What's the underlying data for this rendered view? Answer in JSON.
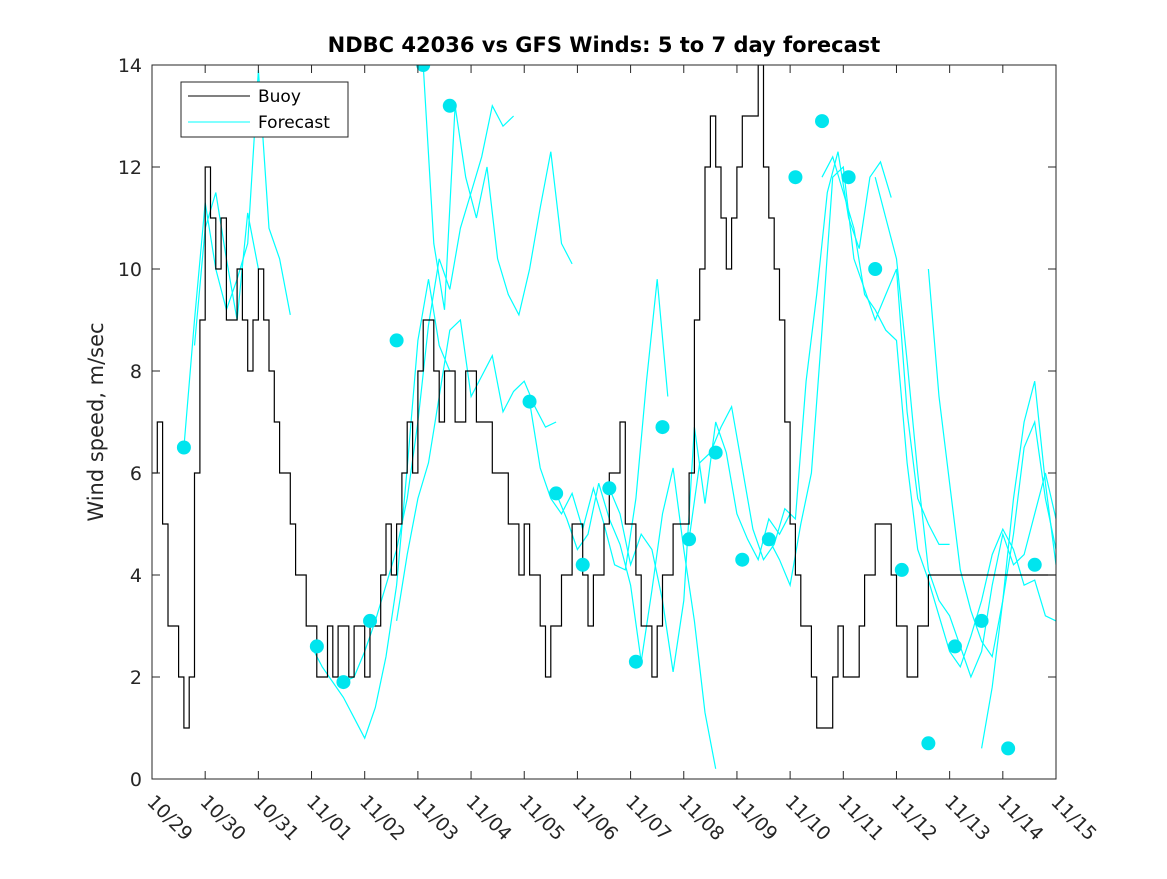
{
  "chart_data": {
    "type": "line",
    "title": "NDBC 42036 vs GFS Winds: 5 to 7 day forecast",
    "xlabel": "",
    "ylabel": "Wind speed, m/sec",
    "xlim": [
      0,
      17
    ],
    "ylim": [
      0,
      14
    ],
    "x_tick_labels": [
      "10/29",
      "10/30",
      "10/31",
      "11/01",
      "11/02",
      "11/03",
      "11/04",
      "11/05",
      "11/06",
      "11/07",
      "11/08",
      "11/09",
      "11/10",
      "11/11",
      "11/12",
      "11/13",
      "11/14",
      "11/15"
    ],
    "y_ticks": [
      0,
      2,
      4,
      6,
      8,
      10,
      12,
      14
    ],
    "legend": {
      "position": "top-left",
      "entries": [
        "Buoy",
        "Forecast"
      ]
    },
    "colors": {
      "buoy": "#000000",
      "forecast": "#00ffff",
      "marker": "#00e5ee"
    },
    "series": [
      {
        "name": "Buoy",
        "x": [
          0.0,
          0.1,
          0.2,
          0.3,
          0.4,
          0.5,
          0.6,
          0.7,
          0.8,
          0.9,
          1.0,
          1.1,
          1.2,
          1.3,
          1.4,
          1.5,
          1.6,
          1.7,
          1.8,
          1.9,
          2.0,
          2.1,
          2.2,
          2.3,
          2.4,
          2.5,
          2.6,
          2.7,
          2.8,
          2.9,
          3.0,
          3.1,
          3.2,
          3.3,
          3.4,
          3.5,
          3.6,
          3.7,
          3.8,
          3.9,
          4.0,
          4.1,
          4.2,
          4.3,
          4.4,
          4.5,
          4.6,
          4.7,
          4.8,
          4.9,
          5.0,
          5.1,
          5.2,
          5.3,
          5.4,
          5.5,
          5.6,
          5.7,
          5.8,
          5.9,
          6.0,
          6.1,
          6.2,
          6.3,
          6.4,
          6.5,
          6.6,
          6.7,
          6.8,
          6.9,
          7.0,
          7.1,
          7.2,
          7.3,
          7.4,
          7.5,
          7.6,
          7.7,
          7.8,
          7.9,
          8.0,
          8.1,
          8.2,
          8.3,
          8.4,
          8.5,
          8.6,
          8.7,
          8.8,
          8.9,
          9.0,
          9.1,
          9.2,
          9.3,
          9.4,
          9.5,
          9.6,
          9.7,
          9.8,
          9.9,
          10.0,
          10.1,
          10.2,
          10.3,
          10.4,
          10.5,
          10.6,
          10.7,
          10.8,
          10.9,
          11.0,
          11.1,
          11.2,
          11.3,
          11.4,
          11.5,
          11.6,
          11.7,
          11.8,
          11.9,
          12.0,
          12.1,
          12.2,
          12.3,
          12.4,
          12.5,
          12.6,
          12.7,
          12.8,
          12.9,
          13.0,
          13.1,
          13.2,
          13.3,
          13.4,
          13.5,
          13.6,
          13.7,
          13.8,
          13.9,
          14.0,
          14.1,
          14.2,
          14.3,
          14.4,
          14.5,
          14.6,
          14.7,
          14.8,
          14.9,
          15.0,
          15.1,
          15.2,
          15.3,
          15.4,
          15.5,
          15.6,
          15.7,
          15.8,
          15.9,
          16.0,
          16.1,
          16.2,
          16.3,
          16.4,
          16.5,
          16.6,
          16.7,
          16.8,
          16.9,
          17.0
        ],
        "y": [
          6,
          7,
          5,
          3,
          3,
          2,
          1,
          2,
          6,
          9,
          12,
          11,
          10,
          11,
          9,
          9,
          10,
          9,
          8,
          9,
          10,
          9,
          8,
          7,
          6,
          6,
          5,
          4,
          4,
          3,
          3,
          2,
          2,
          3,
          2,
          3,
          3,
          2,
          3,
          3,
          2,
          3,
          3,
          4,
          5,
          4,
          5,
          6,
          7,
          6,
          8,
          9,
          9,
          8,
          7,
          8,
          8,
          7,
          7,
          8,
          8,
          7,
          7,
          7,
          6,
          6,
          6,
          5,
          5,
          4,
          5,
          4,
          4,
          3,
          2,
          3,
          3,
          4,
          4,
          5,
          5,
          4,
          3,
          4,
          4,
          5,
          6,
          6,
          7,
          5,
          5,
          4,
          3,
          3,
          2,
          3,
          4,
          4,
          5,
          5,
          5,
          6,
          9,
          10,
          12,
          13,
          12,
          11,
          10,
          11,
          12,
          13,
          13,
          13,
          14,
          12,
          11,
          10,
          9,
          7,
          5,
          4,
          3,
          3,
          2,
          1,
          1,
          1,
          2,
          3,
          2,
          2,
          2,
          3,
          4,
          4,
          5,
          5,
          5,
          4,
          3,
          3,
          2,
          2,
          3,
          3,
          4,
          4,
          4,
          4,
          4,
          4,
          4,
          4,
          4,
          4,
          4,
          4,
          4,
          4,
          4,
          4,
          4,
          4,
          4,
          4,
          4,
          4,
          4,
          4,
          4
        ]
      },
      {
        "name": "Forecast",
        "segments": [
          {
            "x": [
              0.6,
              0.8,
              1.0,
              1.2,
              1.4,
              1.6,
              1.8,
              2.0,
              2.2,
              2.4,
              2.6
            ],
            "y": [
              6.5,
              9.0,
              11.3,
              10.0,
              9.2,
              9.8,
              10.5,
              13.9,
              10.8,
              10.2,
              9.1
            ]
          },
          {
            "x": [
              0.8,
              1.0,
              1.2,
              1.4,
              1.6,
              1.8,
              2.0
            ],
            "y": [
              8.5,
              10.8,
              11.5,
              10.2,
              9.0,
              11.1,
              10.0
            ]
          },
          {
            "x": [
              3.0,
              3.2,
              3.4,
              3.6,
              3.8,
              4.0,
              4.2,
              4.4,
              4.6,
              4.8,
              5.0,
              5.2,
              5.4,
              5.6
            ],
            "y": [
              2.6,
              2.2,
              1.9,
              1.6,
              1.2,
              0.8,
              1.4,
              2.4,
              3.8,
              6.1,
              8.6,
              9.8,
              8.5,
              8.0
            ]
          },
          {
            "x": [
              3.6,
              3.8,
              4.0,
              4.2,
              4.4,
              4.6,
              4.8,
              5.0,
              5.2,
              5.4,
              5.6,
              5.8,
              6.0,
              6.2,
              6.4,
              6.6,
              6.8
            ],
            "y": [
              1.9,
              2.0,
              2.5,
              3.1,
              3.8,
              4.5,
              5.5,
              7.0,
              8.9,
              10.2,
              9.6,
              10.8,
              11.5,
              12.2,
              13.2,
              12.8,
              13.0
            ]
          },
          {
            "x": [
              5.1,
              5.3,
              5.5,
              5.7,
              5.9,
              6.1,
              6.3,
              6.5,
              6.7,
              6.9,
              7.1,
              7.3,
              7.5,
              7.7,
              7.9
            ],
            "y": [
              14.0,
              10.5,
              9.2,
              13.2,
              11.8,
              11.0,
              12.0,
              10.2,
              9.5,
              9.1,
              10.0,
              11.2,
              12.3,
              10.5,
              10.1
            ]
          },
          {
            "x": [
              4.6,
              4.8,
              5.0,
              5.2,
              5.4,
              5.6,
              5.8,
              6.0,
              6.2,
              6.4,
              6.6,
              6.8,
              7.0,
              7.2,
              7.4,
              7.6
            ],
            "y": [
              3.1,
              4.4,
              5.5,
              6.2,
              7.5,
              8.8,
              9.0,
              7.5,
              7.9,
              8.3,
              7.2,
              7.6,
              7.8,
              7.3,
              6.9,
              7.0
            ]
          },
          {
            "x": [
              7.1,
              7.3,
              7.5,
              7.7,
              7.9,
              8.1,
              8.3,
              8.5,
              8.7,
              8.9,
              9.1,
              9.3,
              9.5,
              9.7
            ],
            "y": [
              7.4,
              6.1,
              5.5,
              5.2,
              5.6,
              4.9,
              5.7,
              5.0,
              4.2,
              4.1,
              5.5,
              7.8,
              9.8,
              7.5
            ]
          },
          {
            "x": [
              7.6,
              7.8,
              8.0,
              8.2,
              8.4,
              8.6,
              8.8,
              9.0,
              9.2,
              9.4,
              9.6,
              9.8,
              10.0,
              10.2,
              10.4,
              10.6
            ],
            "y": [
              5.6,
              5.1,
              4.5,
              4.8,
              5.8,
              5.1,
              4.6,
              3.8,
              2.3,
              3.7,
              5.2,
              6.1,
              4.5,
              3.1,
              1.3,
              0.2
            ]
          },
          {
            "x": [
              8.6,
              8.8,
              9.0,
              9.2,
              9.4,
              9.6,
              9.8,
              10.0,
              10.2,
              10.4,
              10.6,
              10.8,
              11.0,
              11.2,
              11.4,
              11.6,
              11.8,
              12.0
            ],
            "y": [
              5.7,
              5.2,
              4.2,
              4.8,
              4.5,
              3.5,
              2.1,
              3.5,
              6.9,
              5.4,
              7.0,
              6.4,
              5.2,
              4.7,
              4.3,
              5.1,
              4.8,
              5.2
            ]
          },
          {
            "x": [
              10.1,
              10.3,
              10.5,
              10.7,
              10.9,
              11.1,
              11.3,
              11.5,
              11.7,
              11.9,
              12.1,
              12.3,
              12.5,
              12.7,
              12.9,
              13.1,
              13.3,
              13.5,
              13.7,
              13.9
            ],
            "y": [
              4.7,
              6.2,
              6.4,
              6.9,
              7.3,
              6.1,
              4.9,
              4.3,
              4.6,
              5.3,
              5.1,
              7.8,
              9.5,
              11.5,
              12.3,
              11.0,
              10.4,
              11.8,
              12.1,
              11.4
            ]
          },
          {
            "x": [
              11.6,
              11.8,
              12.0,
              12.2,
              12.4,
              12.6,
              12.8,
              13.0,
              13.2,
              13.4,
              13.6,
              13.8,
              14.0,
              14.2,
              14.4,
              14.6,
              14.8,
              15.0
            ],
            "y": [
              4.7,
              4.3,
              3.8,
              5.0,
              6.0,
              8.8,
              11.8,
              12.0,
              10.2,
              9.6,
              9.0,
              9.5,
              10.0,
              7.2,
              5.5,
              5.0,
              4.6,
              4.6
            ]
          },
          {
            "x": [
              12.6,
              12.8,
              13.0,
              13.2,
              13.4,
              13.6,
              13.8,
              14.0,
              14.2,
              14.4,
              14.6,
              14.8,
              15.0,
              15.2,
              15.4,
              15.6,
              15.8,
              16.0,
              16.2,
              16.4,
              16.6,
              16.8,
              17.0
            ],
            "y": [
              11.8,
              12.2,
              11.5,
              10.8,
              9.5,
              9.2,
              8.8,
              8.6,
              6.2,
              4.5,
              3.9,
              3.2,
              2.5,
              2.2,
              2.8,
              3.5,
              4.4,
              4.9,
              4.5,
              3.8,
              3.9,
              3.2,
              3.1
            ]
          },
          {
            "x": [
              13.6,
              13.8,
              14.0,
              14.2,
              14.4,
              14.6,
              14.8,
              15.0,
              15.2,
              15.4,
              15.6,
              15.8,
              16.0,
              16.2,
              16.4,
              16.6,
              16.8,
              17.0
            ],
            "y": [
              11.8,
              11.0,
              10.2,
              8.2,
              6.0,
              4.1,
              3.5,
              3.2,
              2.6,
              2.0,
              2.5,
              3.8,
              4.8,
              4.2,
              4.4,
              5.2,
              6.0,
              5.1
            ]
          },
          {
            "x": [
              14.6,
              14.8,
              15.0,
              15.2,
              15.4,
              15.6,
              15.8,
              16.0,
              16.2,
              16.4,
              16.6,
              16.8,
              17.0
            ],
            "y": [
              10.0,
              7.5,
              5.8,
              4.1,
              3.3,
              2.7,
              2.4,
              3.5,
              4.8,
              6.5,
              7.0,
              5.5,
              4.5
            ]
          },
          {
            "x": [
              15.6,
              15.8,
              16.0,
              16.2,
              16.4,
              16.6,
              16.8,
              17.0
            ],
            "y": [
              0.6,
              1.8,
              3.5,
              5.5,
              7.0,
              7.8,
              5.8,
              4.2
            ]
          }
        ],
        "markers": {
          "x": [
            0.6,
            3.1,
            3.6,
            4.1,
            4.6,
            5.1,
            5.6,
            7.1,
            7.6,
            8.1,
            8.6,
            9.1,
            9.6,
            10.1,
            10.6,
            11.1,
            11.6,
            12.1,
            12.6,
            13.1,
            13.6,
            14.1,
            14.6,
            15.1,
            15.6,
            16.1,
            16.6
          ],
          "y": [
            6.5,
            2.6,
            1.9,
            3.1,
            8.6,
            14.0,
            13.2,
            7.4,
            5.6,
            4.2,
            5.7,
            2.3,
            6.9,
            4.7,
            6.4,
            4.3,
            4.7,
            11.8,
            12.9,
            11.8,
            10.0,
            4.1,
            0.7,
            2.6,
            3.1,
            0.6,
            4.2
          ]
        }
      }
    ]
  }
}
